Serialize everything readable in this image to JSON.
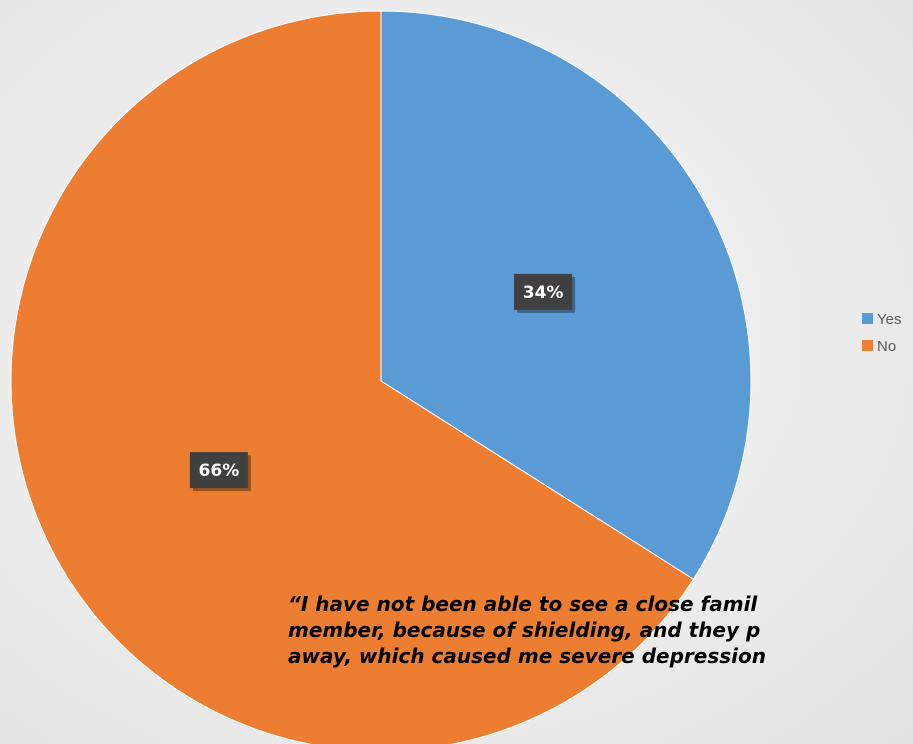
{
  "chart_data": {
    "type": "pie",
    "categories": [
      "Yes",
      "No"
    ],
    "values": [
      34,
      66
    ],
    "data_labels": [
      "34%",
      "66%"
    ],
    "colors": [
      "#5b9bd5",
      "#ed7d31"
    ],
    "legend_position": "right",
    "start_angle_deg": 0,
    "direction": "clockwise"
  },
  "quote": {
    "text": "“I have not been able to see a close famil\nmember, because of shielding, and they p\naway, which caused me severe depression"
  }
}
